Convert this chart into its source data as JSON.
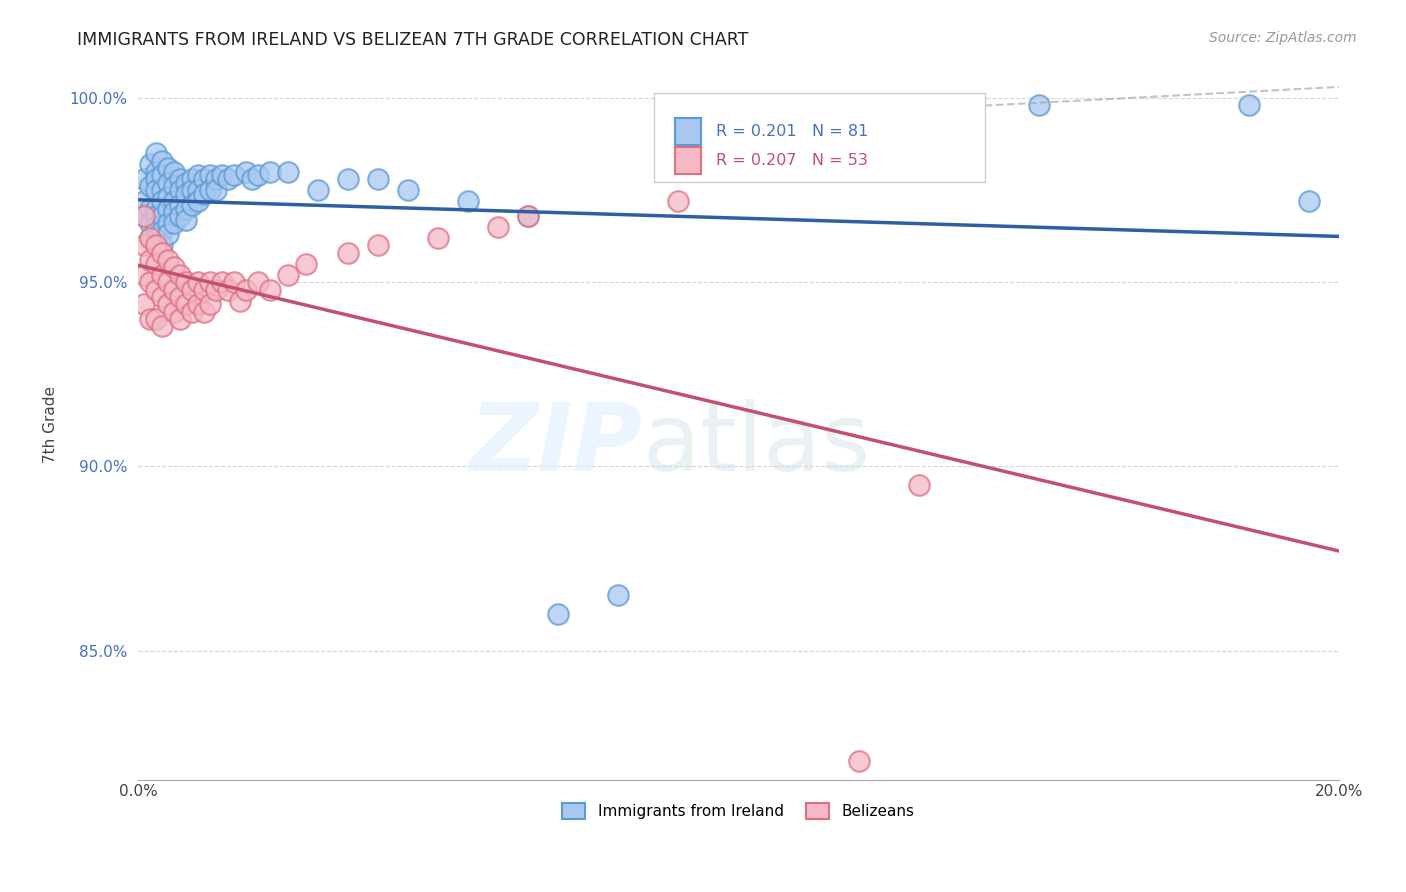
{
  "title": "IMMIGRANTS FROM IRELAND VS BELIZEAN 7TH GRADE CORRELATION CHART",
  "source": "Source: ZipAtlas.com",
  "ylabel": "7th Grade",
  "x_min": 0.0,
  "x_max": 0.2,
  "y_min": 0.815,
  "y_max": 1.008,
  "y_ticks": [
    0.85,
    0.9,
    0.95,
    1.0
  ],
  "y_tick_labels": [
    "85.0%",
    "90.0%",
    "95.0%",
    "100.0%"
  ],
  "x_ticks": [
    0.0,
    0.05,
    0.1,
    0.15,
    0.2
  ],
  "x_tick_labels": [
    "0.0%",
    "",
    "",
    "",
    "20.0%"
  ],
  "color_blue_face": "#a8c8f0",
  "color_blue_edge": "#5b9bd5",
  "color_pink_face": "#f4b8c8",
  "color_pink_edge": "#e07080",
  "line_blue": "#2e5fa3",
  "line_pink": "#c45070",
  "line_dashed_color": "#9ab7d8",
  "background": "#ffffff",
  "blue_scatter_x": [
    0.001,
    0.001,
    0.001,
    0.002,
    0.002,
    0.002,
    0.002,
    0.002,
    0.003,
    0.003,
    0.003,
    0.003,
    0.003,
    0.003,
    0.003,
    0.003,
    0.004,
    0.004,
    0.004,
    0.004,
    0.004,
    0.004,
    0.004,
    0.005,
    0.005,
    0.005,
    0.005,
    0.005,
    0.005,
    0.006,
    0.006,
    0.006,
    0.006,
    0.006,
    0.007,
    0.007,
    0.007,
    0.007,
    0.008,
    0.008,
    0.008,
    0.008,
    0.009,
    0.009,
    0.009,
    0.01,
    0.01,
    0.01,
    0.011,
    0.011,
    0.012,
    0.012,
    0.013,
    0.013,
    0.014,
    0.015,
    0.016,
    0.018,
    0.019,
    0.02,
    0.022,
    0.025,
    0.03,
    0.035,
    0.04,
    0.045,
    0.055,
    0.065,
    0.07,
    0.08,
    0.15,
    0.185,
    0.195
  ],
  "blue_scatter_y": [
    0.978,
    0.972,
    0.968,
    0.982,
    0.976,
    0.97,
    0.966,
    0.962,
    0.985,
    0.98,
    0.978,
    0.975,
    0.97,
    0.968,
    0.965,
    0.962,
    0.983,
    0.979,
    0.975,
    0.972,
    0.968,
    0.964,
    0.96,
    0.981,
    0.977,
    0.973,
    0.97,
    0.966,
    0.963,
    0.98,
    0.976,
    0.972,
    0.969,
    0.966,
    0.978,
    0.975,
    0.971,
    0.968,
    0.977,
    0.974,
    0.97,
    0.967,
    0.978,
    0.975,
    0.971,
    0.979,
    0.975,
    0.972,
    0.978,
    0.974,
    0.979,
    0.975,
    0.978,
    0.975,
    0.979,
    0.978,
    0.979,
    0.98,
    0.978,
    0.979,
    0.98,
    0.98,
    0.975,
    0.978,
    0.978,
    0.975,
    0.972,
    0.968,
    0.86,
    0.865,
    0.998,
    0.998,
    0.972
  ],
  "pink_scatter_x": [
    0.001,
    0.001,
    0.001,
    0.001,
    0.002,
    0.002,
    0.002,
    0.002,
    0.003,
    0.003,
    0.003,
    0.003,
    0.004,
    0.004,
    0.004,
    0.004,
    0.005,
    0.005,
    0.005,
    0.006,
    0.006,
    0.006,
    0.007,
    0.007,
    0.007,
    0.008,
    0.008,
    0.009,
    0.009,
    0.01,
    0.01,
    0.011,
    0.011,
    0.012,
    0.012,
    0.013,
    0.014,
    0.015,
    0.016,
    0.017,
    0.018,
    0.02,
    0.022,
    0.025,
    0.028,
    0.035,
    0.04,
    0.05,
    0.06,
    0.065,
    0.09,
    0.12,
    0.13
  ],
  "pink_scatter_y": [
    0.968,
    0.96,
    0.952,
    0.944,
    0.962,
    0.956,
    0.95,
    0.94,
    0.96,
    0.955,
    0.948,
    0.94,
    0.958,
    0.952,
    0.946,
    0.938,
    0.956,
    0.95,
    0.944,
    0.954,
    0.948,
    0.942,
    0.952,
    0.946,
    0.94,
    0.95,
    0.944,
    0.948,
    0.942,
    0.95,
    0.944,
    0.948,
    0.942,
    0.95,
    0.944,
    0.948,
    0.95,
    0.948,
    0.95,
    0.945,
    0.948,
    0.95,
    0.948,
    0.952,
    0.955,
    0.958,
    0.96,
    0.962,
    0.965,
    0.968,
    0.972,
    0.82,
    0.895
  ]
}
